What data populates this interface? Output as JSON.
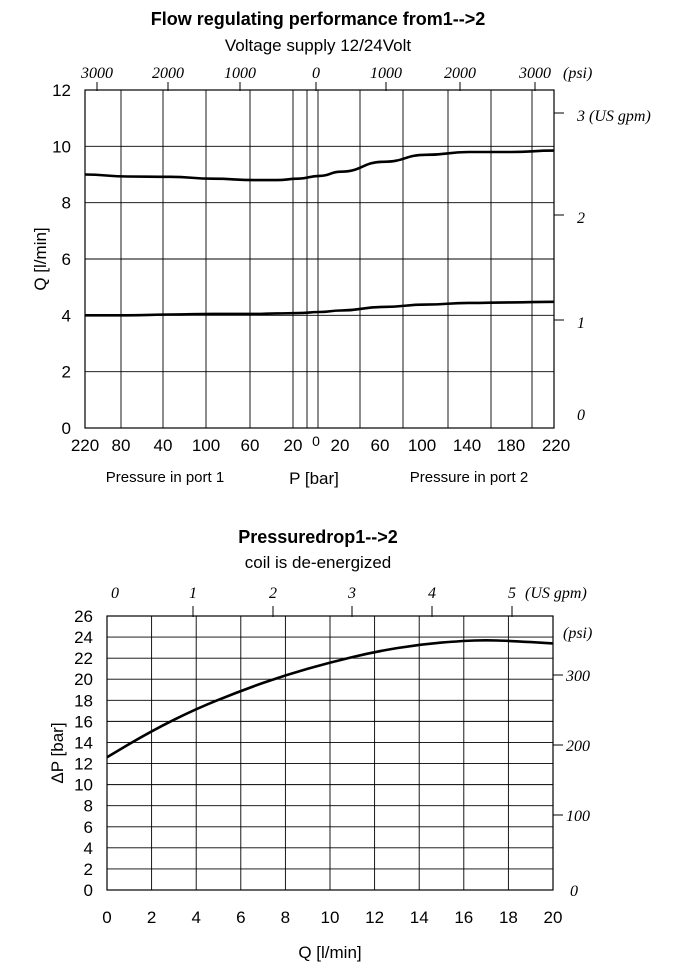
{
  "chart_data": [
    {
      "type": "line",
      "title": "Flow regulating performance from1-->2",
      "subtitle": "Voltage supply 12/24Volt",
      "ylabel": "Q [l/min]",
      "xlabel": "P [bar]",
      "xlabel_left": "Pressure in port 1",
      "xlabel_right": "Pressure in port 2",
      "ylim": [
        0,
        12
      ],
      "yticks": [
        "0",
        "2",
        "4",
        "6",
        "8",
        "10",
        "12"
      ],
      "xticks": [
        "220",
        "80",
        "40",
        "100",
        "60",
        "20",
        "0",
        "20",
        "60",
        "100",
        "140",
        "180",
        "220"
      ],
      "top_axis_ticks": [
        "3000",
        "2000",
        "1000",
        "0",
        "1000",
        "2000",
        "3000"
      ],
      "top_axis_unit": "(psi)",
      "right_axis_ticks": [
        "0",
        "1",
        "2",
        "3 (US gpm)"
      ],
      "grid": true,
      "series": [
        {
          "x": [
            -220,
            -180,
            -140,
            -100,
            -60,
            -40,
            -20,
            0,
            20,
            60,
            100,
            140,
            180,
            220
          ],
          "values": [
            9.0,
            8.93,
            8.92,
            8.85,
            8.8,
            8.8,
            8.85,
            8.95,
            9.1,
            9.45,
            9.7,
            9.8,
            9.8,
            9.85
          ]
        },
        {
          "x": [
            -220,
            -180,
            -140,
            -100,
            -60,
            -40,
            -20,
            0,
            20,
            60,
            100,
            140,
            180,
            220
          ],
          "values": [
            4.0,
            4.0,
            4.03,
            4.05,
            4.05,
            4.07,
            4.08,
            4.12,
            4.17,
            4.3,
            4.38,
            4.44,
            4.46,
            4.48
          ]
        }
      ]
    },
    {
      "type": "line",
      "title": "Pressuredrop1-->2",
      "subtitle": "coil is de-energized",
      "ylabel": "ΔP [bar]",
      "xlabel": "Q [l/min]",
      "xlim": [
        0,
        20
      ],
      "ylim": [
        0,
        26
      ],
      "xticks": [
        "0",
        "2",
        "4",
        "6",
        "8",
        "10",
        "12",
        "14",
        "16",
        "18",
        "20"
      ],
      "yticks": [
        "0",
        "2",
        "4",
        "6",
        "8",
        "10",
        "12",
        "14",
        "16",
        "18",
        "20",
        "22",
        "24",
        "26"
      ],
      "top_axis_ticks": [
        "0",
        "1",
        "2",
        "3",
        "4",
        "5"
      ],
      "top_axis_unit": "(US gpm)",
      "right_axis_ticks": [
        "0",
        "100",
        "200",
        "300"
      ],
      "right_axis_unit": "(psi)",
      "grid": true,
      "series": [
        {
          "x": [
            0,
            2,
            4,
            6,
            8,
            10,
            12,
            14,
            16,
            17,
            18,
            20
          ],
          "values": [
            12.6,
            15.1,
            17.2,
            18.9,
            20.4,
            21.6,
            22.6,
            23.3,
            23.65,
            23.7,
            23.65,
            23.4
          ]
        }
      ]
    }
  ]
}
